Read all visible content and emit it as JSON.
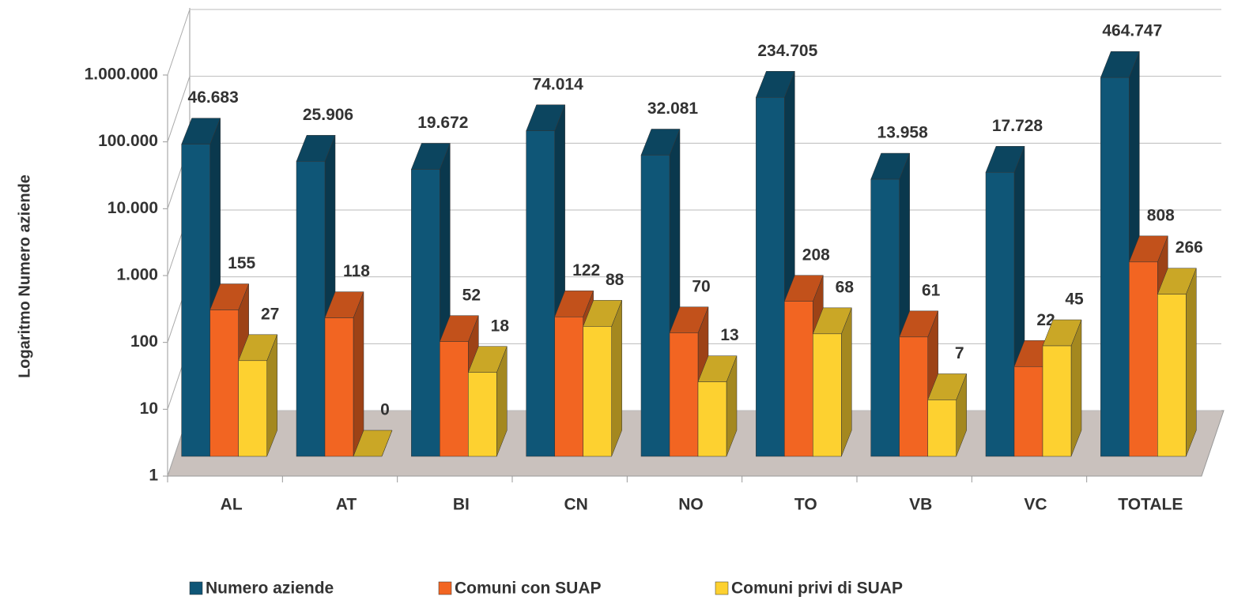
{
  "chart_data": {
    "type": "bar3d",
    "y_axis_label": "Logaritmo Numero aziende",
    "log_scale": true,
    "grid": true,
    "legend": "bottom",
    "categories": [
      "AL",
      "AT",
      "BI",
      "CN",
      "NO",
      "TO",
      "VB",
      "VC",
      "TOTALE"
    ],
    "ylim": [
      1,
      1000000
    ],
    "yticks": [
      1,
      10,
      100,
      {
        "value": 1000,
        "label": "1.000"
      },
      {
        "value": 10000,
        "label": "10.000"
      },
      {
        "value": 100000,
        "label": "100.000"
      },
      {
        "value": 1000000,
        "label": "1.000.000"
      }
    ],
    "series": [
      {
        "name": "Numero aziende",
        "color": "#0f5677",
        "values": [
          46683,
          25906,
          19672,
          74014,
          32081,
          234705,
          13958,
          17728,
          464747
        ],
        "value_labels": [
          "46.683",
          "25.906",
          "19.672",
          "74.014",
          "32.081",
          "234.705",
          "13.958",
          "17.728",
          "464.747"
        ]
      },
      {
        "name": "Comuni con SUAP",
        "color": "#f26522",
        "values": [
          155,
          118,
          52,
          122,
          70,
          208,
          61,
          22,
          808
        ]
      },
      {
        "name": "Comuni privi di SUAP",
        "color": "#fdd130",
        "values": [
          27,
          0,
          18,
          88,
          13,
          68,
          7,
          45,
          266
        ]
      }
    ]
  }
}
